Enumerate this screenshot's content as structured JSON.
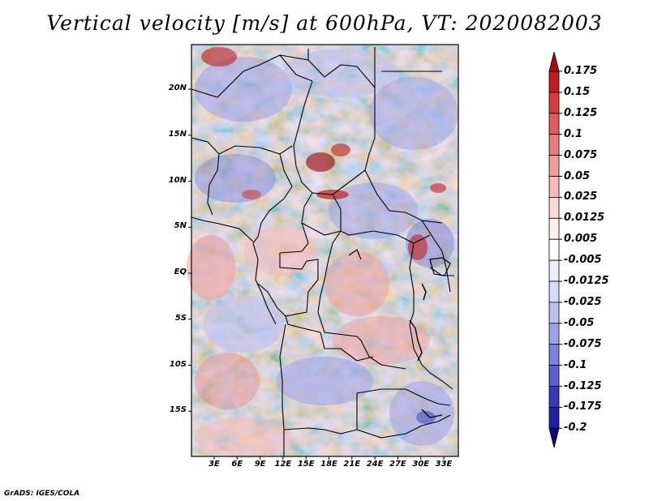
{
  "title": "Vertical velocity [m/s] at 600hPa, VT: 2020082003",
  "footer": "GrADS: IGES/COLA",
  "map": {
    "region": "Central Africa",
    "lat_range": [
      -20,
      24
    ],
    "lon_range": [
      0,
      35
    ],
    "lat_ticks": [
      {
        "value": 20,
        "label": "20N"
      },
      {
        "value": 15,
        "label": "15N"
      },
      {
        "value": 10,
        "label": "10N"
      },
      {
        "value": 5,
        "label": "5N"
      },
      {
        "value": 0,
        "label": "EQ"
      },
      {
        "value": -5,
        "label": "5S"
      },
      {
        "value": -10,
        "label": "10S"
      },
      {
        "value": -15,
        "label": "15S"
      }
    ],
    "lon_ticks": [
      {
        "value": 3,
        "label": "3E"
      },
      {
        "value": 6,
        "label": "6E"
      },
      {
        "value": 9,
        "label": "9E"
      },
      {
        "value": 12,
        "label": "12E"
      },
      {
        "value": 15,
        "label": "15E"
      },
      {
        "value": 18,
        "label": "18E"
      },
      {
        "value": 21,
        "label": "21E"
      },
      {
        "value": 24,
        "label": "24E"
      },
      {
        "value": 27,
        "label": "27E"
      },
      {
        "value": 30,
        "label": "30E"
      },
      {
        "value": 33,
        "label": "33E"
      }
    ]
  },
  "colorbar": {
    "levels": [
      "0.175",
      "0.15",
      "0.125",
      "0.1",
      "0.075",
      "0.05",
      "0.025",
      "0.0125",
      "0.005",
      "-0.005",
      "-0.0125",
      "-0.025",
      "-0.05",
      "-0.075",
      "-0.1",
      "-0.125",
      "-0.175",
      "-0.2"
    ],
    "colors": [
      "#a01010",
      "#c01e1e",
      "#d83a3a",
      "#e25a5a",
      "#ea7c7c",
      "#f09c9c",
      "#f6bcbc",
      "#fad8d8",
      "#fdeeee",
      "#ffffff",
      "#eceefc",
      "#d6daf8",
      "#bcc0f2",
      "#9ea2ea",
      "#7e82de",
      "#5a5ed0",
      "#3838bc",
      "#2020a4",
      "#100a80"
    ]
  }
}
